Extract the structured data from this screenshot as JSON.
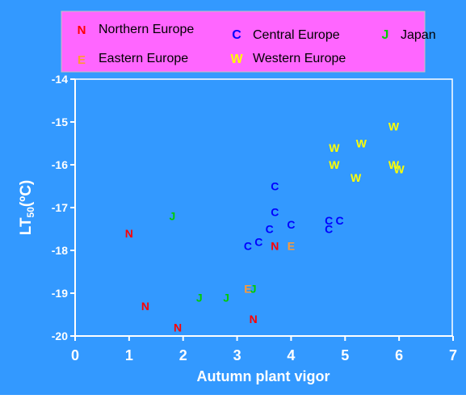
{
  "chart_data": {
    "type": "scatter",
    "xlabel": "Autumn plant vigor",
    "ylabel_main": "LT",
    "ylabel_sub": "50",
    "ylabel_unit": "(ºC)",
    "xlim": [
      0,
      7
    ],
    "ylim": [
      -20,
      -14
    ],
    "x_ticks": [
      "0",
      "1",
      "2",
      "3",
      "4",
      "5",
      "6",
      "7"
    ],
    "y_ticks": [
      "-14",
      "-15",
      "-16",
      "-17",
      "-18",
      "-19",
      "-20"
    ],
    "grid": false,
    "legend_position": "top",
    "series": [
      {
        "name": "Northern Europe",
        "marker": "N",
        "color": "#ff0000",
        "points": [
          {
            "x": 1.0,
            "y": -17.6
          },
          {
            "x": 1.3,
            "y": -19.3
          },
          {
            "x": 1.9,
            "y": -19.8
          },
          {
            "x": 3.3,
            "y": -19.6
          },
          {
            "x": 3.7,
            "y": -17.9
          }
        ]
      },
      {
        "name": "Central Europe",
        "marker": "C",
        "color": "#0000ff",
        "points": [
          {
            "x": 3.2,
            "y": -17.9
          },
          {
            "x": 3.4,
            "y": -17.8
          },
          {
            "x": 3.6,
            "y": -17.5
          },
          {
            "x": 3.7,
            "y": -17.1
          },
          {
            "x": 3.7,
            "y": -16.5
          },
          {
            "x": 4.0,
            "y": -17.4
          },
          {
            "x": 4.7,
            "y": -17.3
          },
          {
            "x": 4.7,
            "y": -17.5
          },
          {
            "x": 4.9,
            "y": -17.3
          }
        ]
      },
      {
        "name": "Japan",
        "marker": "J",
        "color": "#00cc00",
        "points": [
          {
            "x": 1.8,
            "y": -17.2
          },
          {
            "x": 2.3,
            "y": -19.1
          },
          {
            "x": 2.8,
            "y": -19.1
          },
          {
            "x": 3.3,
            "y": -18.9
          }
        ]
      },
      {
        "name": "Eastern Europe",
        "marker": "E",
        "color": "#ff9933",
        "points": [
          {
            "x": 3.2,
            "y": -18.9
          },
          {
            "x": 4.0,
            "y": -17.9
          }
        ]
      },
      {
        "name": "Western Europe",
        "marker": "W",
        "color": "#ffff00",
        "points": [
          {
            "x": 4.8,
            "y": -15.6
          },
          {
            "x": 4.8,
            "y": -16.0
          },
          {
            "x": 5.2,
            "y": -16.3
          },
          {
            "x": 5.3,
            "y": -15.5
          },
          {
            "x": 5.9,
            "y": -15.1
          },
          {
            "x": 5.9,
            "y": -16.0
          },
          {
            "x": 6.0,
            "y": -16.1
          }
        ]
      }
    ]
  },
  "colors": {
    "background": "#3399ff",
    "plot_area": "#3399ff",
    "legend_background": "#ff66ff",
    "text": "#ffffff"
  }
}
